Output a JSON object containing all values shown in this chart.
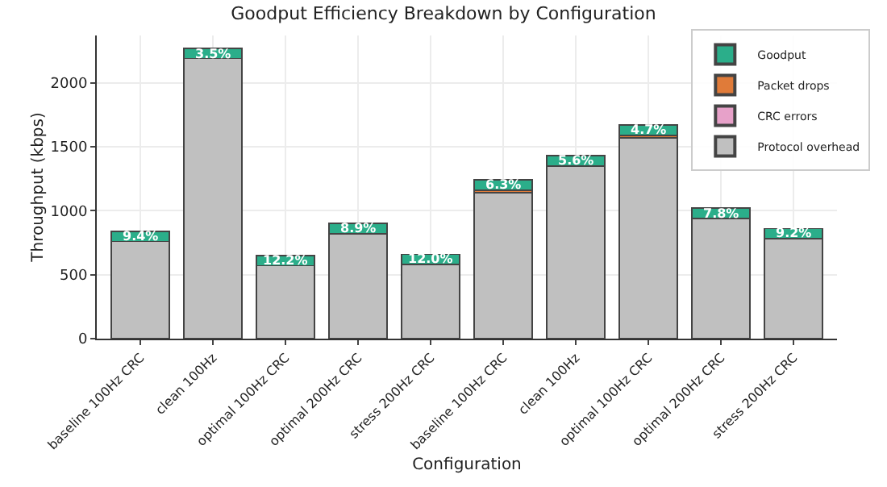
{
  "chart_data": {
    "type": "bar",
    "title": "Goodput Efficiency Breakdown by Configuration",
    "xlabel": "Configuration",
    "ylabel": "Throughput (kbps)",
    "categories": [
      "baseline 100Hz CRC",
      "clean 100Hz",
      "optimal 100Hz CRC",
      "optimal 200Hz CRC",
      "stress 200Hz CRC",
      "baseline 100Hz CRC",
      "clean 100Hz",
      "optimal 100Hz CRC",
      "optimal 200Hz CRC",
      "stress 200Hz CRC"
    ],
    "stacked": true,
    "series": [
      {
        "name": "Protocol overhead",
        "color": "#c0c0c0",
        "values": [
          760,
          2190,
          570,
          820,
          580,
          1140,
          1350,
          1570,
          940,
          780
        ]
      },
      {
        "name": "CRC errors",
        "color": "#e7a1c9",
        "values": [
          0,
          0,
          0,
          0,
          0,
          0,
          0,
          0,
          0,
          0
        ]
      },
      {
        "name": "Packet drops",
        "color": "#e07b39",
        "values": [
          0,
          0,
          0,
          0,
          0,
          20,
          0,
          20,
          0,
          0
        ]
      },
      {
        "name": "Goodput",
        "color": "#2bae8a",
        "values": [
          80,
          80,
          80,
          80,
          80,
          80,
          80,
          80,
          80,
          80
        ]
      }
    ],
    "annotations": [
      "9.4%",
      "3.5%",
      "12.2%",
      "8.9%",
      "12.0%",
      "6.3%",
      "5.6%",
      "4.7%",
      "7.8%",
      "9.2%"
    ],
    "ylim": [
      0,
      2370
    ],
    "yticks": [
      0,
      500,
      1000,
      1500,
      2000
    ],
    "grid": true,
    "legend": "top right"
  }
}
